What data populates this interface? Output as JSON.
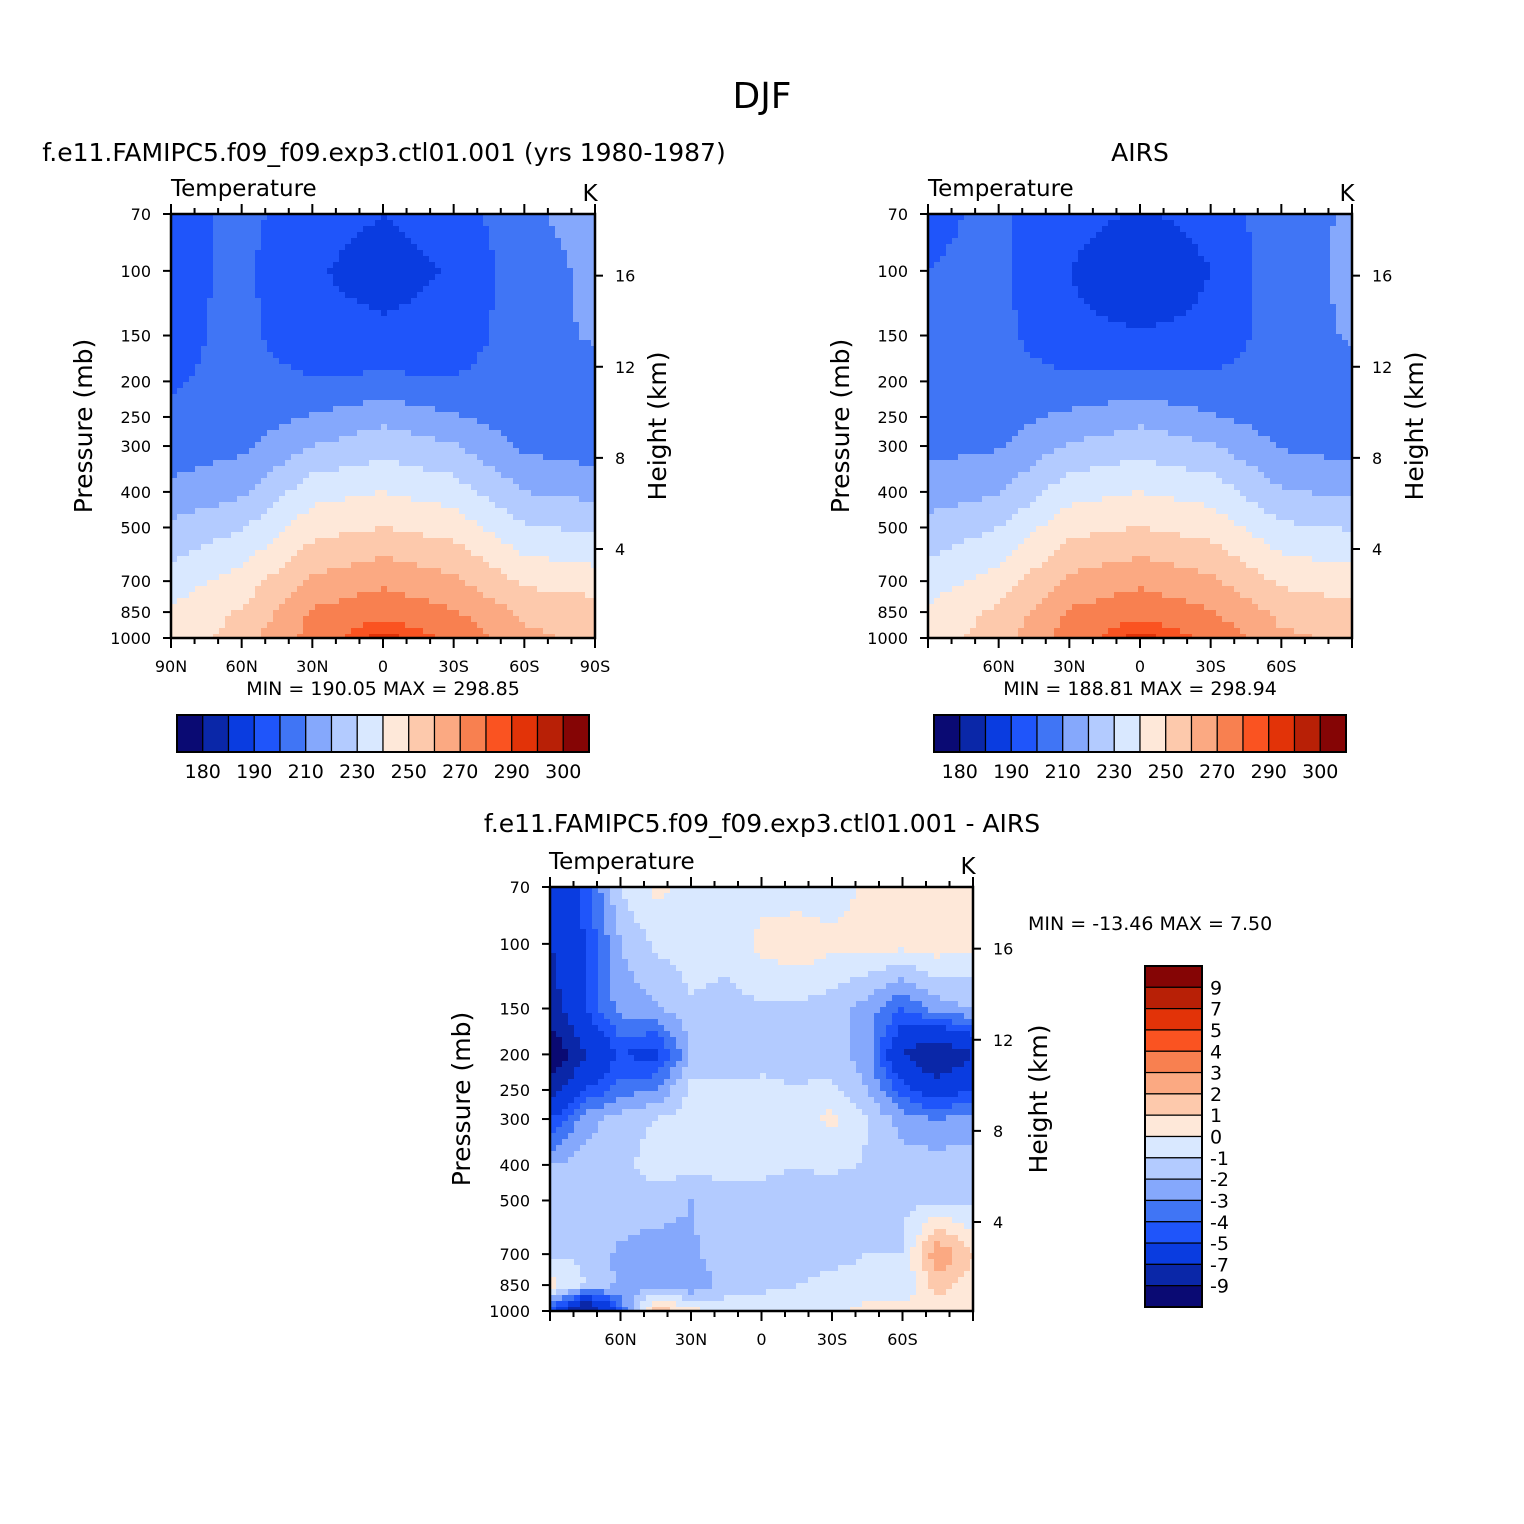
{
  "figure": {
    "title": "DJF"
  },
  "colors": {
    "abs_scale": [
      "#0a0a73",
      "#0a27a8",
      "#0a3ce0",
      "#1f55fa",
      "#4075f5",
      "#85a8fc",
      "#b3cbff",
      "#d9e8ff",
      "#fee8d9",
      "#fdc9ac",
      "#fba982",
      "#f88050",
      "#fa5321",
      "#e23308",
      "#b82006",
      "#850505"
    ],
    "diff_scale": [
      "#0a0a73",
      "#0a27a8",
      "#0a3ce0",
      "#1f55fa",
      "#4075f5",
      "#85a8fc",
      "#b3cbff",
      "#d9e8ff",
      "#fee8d9",
      "#fdc9ac",
      "#fba982",
      "#f88050",
      "#fa5321",
      "#e23308",
      "#b82006",
      "#850505"
    ]
  },
  "chart_data": [
    {
      "type": "heatmap",
      "title": "f.e11.FAMIPC5.f09_f09.exp3.ctl01.001 (yrs 1980-1987)",
      "subtitle": "Temperature",
      "units": "K",
      "ylabel": "Pressure (mb)",
      "y2label": "Height (km)",
      "y_ticks": [
        70,
        100,
        150,
        200,
        250,
        300,
        400,
        500,
        700,
        850,
        1000
      ],
      "y2_ticks": [
        16,
        12,
        8,
        4
      ],
      "x_ticks": [
        "90N",
        "60N",
        "30N",
        "0",
        "30S",
        "60S",
        "90S"
      ],
      "x_values": [
        90,
        60,
        30,
        0,
        -30,
        -60,
        -90
      ],
      "xlim": [
        90,
        -90
      ],
      "ylim": [
        1000,
        70
      ],
      "y_scale": "log",
      "stats": {
        "min_label": "MIN",
        "min": "190.05",
        "max_label": "MAX",
        "max": "298.85"
      },
      "colorbar": {
        "orientation": "horizontal",
        "labels": [
          "180",
          "190",
          "210",
          "230",
          "250",
          "270",
          "290",
          "300"
        ]
      },
      "lat": [
        90,
        60,
        30,
        0,
        -30,
        -60,
        -90
      ],
      "p": [
        70,
        100,
        150,
        200,
        250,
        300,
        400,
        500,
        700,
        850,
        1000
      ],
      "values": [
        [
          206,
          213,
          204,
          200,
          204,
          218,
          224
        ],
        [
          207,
          212,
          201,
          196,
          201,
          216,
          222
        ],
        [
          207,
          213,
          203,
          202,
          203,
          217,
          221
        ],
        [
          209,
          213,
          211,
          212,
          211,
          215,
          217
        ],
        [
          211,
          215,
          221,
          227,
          221,
          214,
          214
        ],
        [
          214,
          218,
          230,
          236,
          231,
          218,
          215
        ],
        [
          223,
          228,
          246,
          250,
          245,
          230,
          227
        ],
        [
          232,
          239,
          256,
          260,
          256,
          241,
          238
        ],
        [
          245,
          254,
          272,
          278,
          272,
          258,
          255
        ],
        [
          251,
          261,
          281,
          287,
          281,
          268,
          265
        ],
        [
          253,
          265,
          284,
          298,
          288,
          272,
          268
        ]
      ]
    },
    {
      "type": "heatmap",
      "title": "AIRS",
      "subtitle": "Temperature",
      "units": "K",
      "ylabel": "Pressure (mb)",
      "y2label": "Height (km)",
      "y_ticks": [
        70,
        100,
        150,
        200,
        250,
        300,
        400,
        500,
        700,
        850,
        1000
      ],
      "y2_ticks": [
        16,
        12,
        8,
        4
      ],
      "x_ticks": [
        "60N",
        "30N",
        "0",
        "30S",
        "60S"
      ],
      "x_values": [
        60,
        30,
        0,
        -30,
        -60
      ],
      "xlim": [
        90,
        -90
      ],
      "ylim": [
        1000,
        70
      ],
      "y_scale": "log",
      "stats": {
        "min_label": "MIN",
        "min": "188.81",
        "max_label": "MAX",
        "max": "298.94"
      },
      "colorbar": {
        "orientation": "horizontal",
        "labels": [
          "180",
          "190",
          "210",
          "230",
          "250",
          "270",
          "290",
          "300"
        ]
      },
      "lat": [
        90,
        60,
        30,
        0,
        -30,
        -60,
        -90
      ],
      "p": [
        70,
        100,
        150,
        200,
        250,
        300,
        400,
        500,
        700,
        850,
        1000
      ],
      "values": [
        [
          208,
          212,
          203,
          199,
          203,
          217,
          221
        ],
        [
          210,
          212,
          200,
          192,
          200,
          216,
          222
        ],
        [
          212,
          213,
          202,
          201,
          202,
          216,
          221
        ],
        [
          214,
          214,
          212,
          213,
          212,
          215,
          217
        ],
        [
          215,
          216,
          222,
          227,
          221,
          215,
          215
        ],
        [
          217,
          219,
          231,
          236,
          231,
          219,
          216
        ],
        [
          225,
          229,
          246,
          250,
          246,
          231,
          228
        ],
        [
          233,
          240,
          257,
          260,
          256,
          242,
          239
        ],
        [
          245,
          254,
          272,
          278,
          272,
          258,
          255
        ],
        [
          252,
          262,
          281,
          287,
          281,
          267,
          263
        ],
        [
          255,
          265,
          285,
          298,
          288,
          272,
          268
        ]
      ]
    },
    {
      "type": "heatmap",
      "title": "f.e11.FAMIPC5.f09_f09.exp3.ctl01.001 - AIRS",
      "subtitle": "Temperature",
      "units": "K",
      "ylabel": "Pressure (mb)",
      "y2label": "Height (km)",
      "y_ticks": [
        70,
        100,
        150,
        200,
        250,
        300,
        400,
        500,
        700,
        850,
        1000
      ],
      "y2_ticks": [
        16,
        12,
        8,
        4
      ],
      "x_ticks": [
        "60N",
        "30N",
        "0",
        "30S",
        "60S"
      ],
      "x_values": [
        60,
        30,
        0,
        -30,
        -60
      ],
      "xlim": [
        90,
        -90
      ],
      "ylim": [
        1000,
        70
      ],
      "y_scale": "log",
      "stats": {
        "min_label": "MIN",
        "min": "-13.46",
        "max_label": "MAX",
        "max": "7.50"
      },
      "colorbar": {
        "orientation": "vertical",
        "labels": [
          "9",
          "7",
          "5",
          "4",
          "3",
          "2",
          "1",
          "0",
          "-1",
          "-2",
          "-3",
          "-4",
          "-5",
          "-7",
          "-9"
        ]
      },
      "lat": [
        90,
        75,
        60,
        45,
        30,
        15,
        0,
        -15,
        -30,
        -45,
        -60,
        -75,
        -90
      ],
      "p": [
        70,
        100,
        150,
        200,
        250,
        300,
        400,
        500,
        700,
        850,
        1000
      ],
      "values": [
        [
          -7,
          -4.5,
          -1,
          0.3,
          -0.5,
          -0.6,
          -0.4,
          -0.6,
          -0.6,
          0.2,
          0.3,
          0.3,
          0.3
        ],
        [
          -7,
          -5,
          -2,
          -0.8,
          -0.4,
          -0.7,
          0.3,
          0.7,
          0.3,
          0.4,
          0.4,
          0.6,
          0.2
        ],
        [
          -8,
          -5,
          -2.5,
          -2.2,
          -1.2,
          -1.3,
          -1.2,
          -1.2,
          -1.5,
          -2.5,
          -4,
          -2.5,
          -2
        ],
        [
          -11,
          -7,
          -5,
          -5.5,
          -2,
          -1.5,
          -1.3,
          -1.2,
          -1.6,
          -2.5,
          -7,
          -9,
          -7
        ],
        [
          -8,
          -5,
          -3.5,
          -3,
          -0.7,
          -0.8,
          -0.8,
          -1,
          -0.7,
          -2,
          -4.5,
          -6,
          -5
        ],
        [
          -5,
          -2.5,
          -1.5,
          -1,
          -0.5,
          -0.4,
          -0.5,
          -0.5,
          0.3,
          -1,
          -2.5,
          -3,
          -2.5
        ],
        [
          -2,
          -1.5,
          -1.3,
          -0.5,
          -0.6,
          -0.7,
          -0.8,
          -1,
          -0.8,
          -1.1,
          -1.5,
          -1.5,
          -1.5
        ],
        [
          -1.5,
          -1.2,
          -1.2,
          -1.5,
          -2,
          -1.3,
          -1.3,
          -1.2,
          -1.6,
          -1.5,
          -1.3,
          -1.2,
          -1.3
        ],
        [
          -1.2,
          -1.2,
          -2.3,
          -2.5,
          -2.2,
          -1.4,
          -1.3,
          -1.3,
          -1.2,
          -1,
          -1,
          3,
          1
        ],
        [
          0.5,
          -1,
          -2.2,
          -2.5,
          -3,
          -1.5,
          -1.2,
          -1,
          -0.8,
          -0.8,
          -0.9,
          1.5,
          0.5
        ],
        [
          -4,
          -10,
          -4,
          2,
          0.4,
          -0.5,
          -0.5,
          -0.5,
          -0.5,
          0.5,
          0.5,
          0.4,
          0.4
        ]
      ]
    }
  ]
}
